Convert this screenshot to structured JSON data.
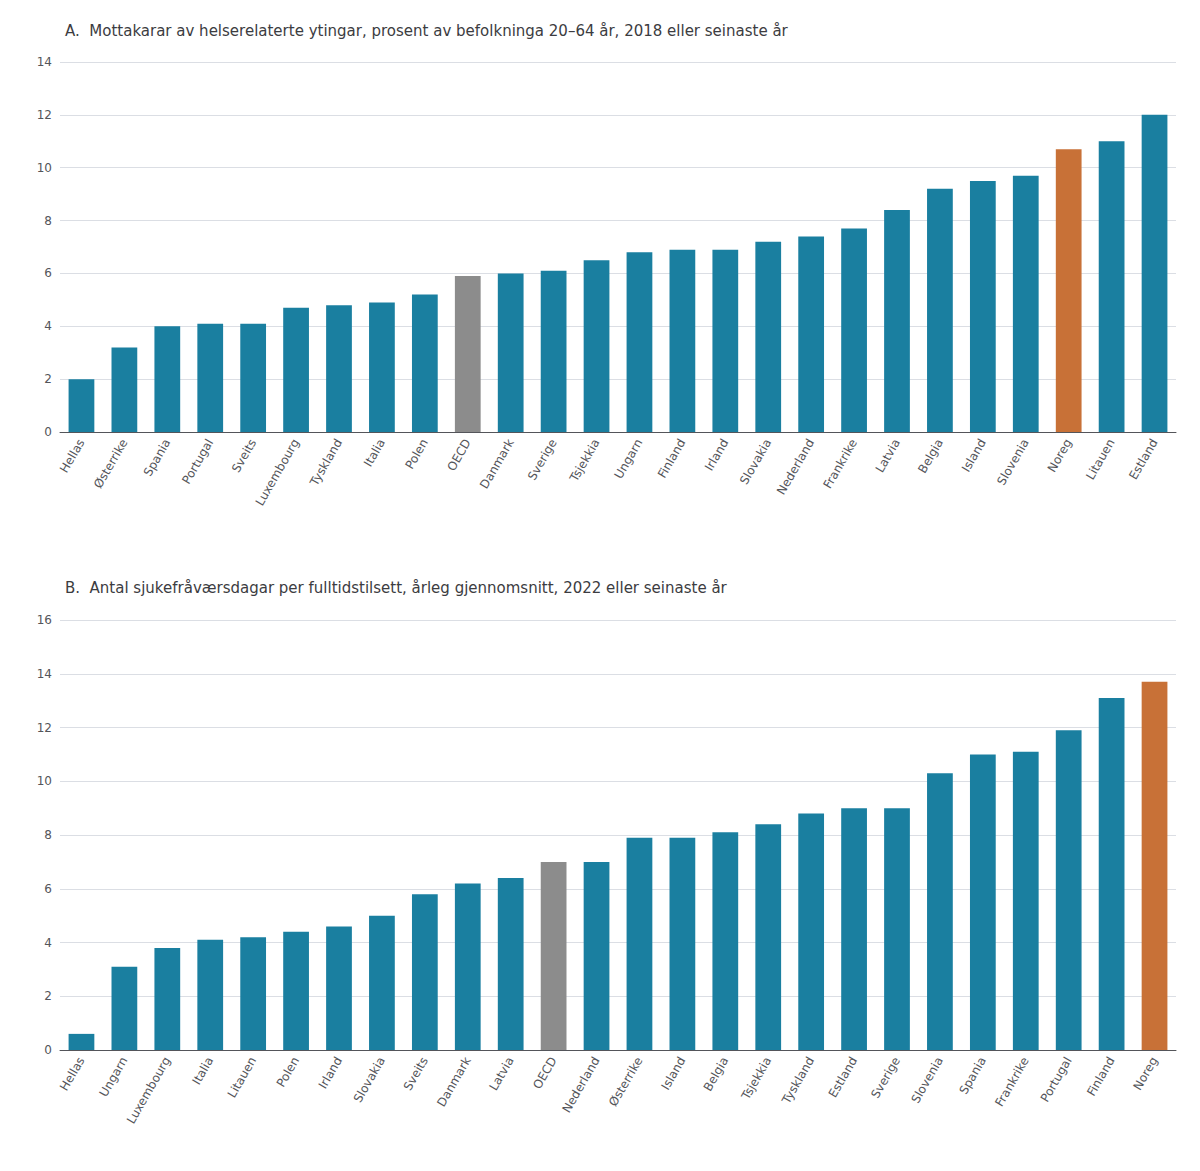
{
  "chart_data": [
    {
      "type": "bar",
      "title": "A.  Mottakarar av helserelaterte ytingar, prosent av befolkninga 20–64 år, 2018 eller seinaste år",
      "categories": [
        "Hellas",
        "Østerrike",
        "Spania",
        "Portugal",
        "Sveits",
        "Luxembourg",
        "Tyskland",
        "Italia",
        "Polen",
        "OECD",
        "Danmark",
        "Sverige",
        "Tsjekkia",
        "Ungarn",
        "Finland",
        "Irland",
        "Slovakia",
        "Nederland",
        "Frankrike",
        "Latvia",
        "Belgia",
        "Island",
        "Slovenia",
        "Noreg",
        "Litauen",
        "Estland"
      ],
      "values": [
        2.0,
        3.2,
        4.0,
        4.1,
        4.1,
        4.7,
        4.8,
        4.9,
        5.2,
        5.9,
        6.0,
        6.1,
        6.5,
        6.8,
        6.9,
        6.9,
        7.2,
        7.4,
        7.7,
        8.4,
        9.2,
        9.5,
        9.7,
        10.7,
        11.0,
        12.0
      ],
      "colors": [
        "#1a7fa0",
        "#1a7fa0",
        "#1a7fa0",
        "#1a7fa0",
        "#1a7fa0",
        "#1a7fa0",
        "#1a7fa0",
        "#1a7fa0",
        "#1a7fa0",
        "#8c8c8c",
        "#1a7fa0",
        "#1a7fa0",
        "#1a7fa0",
        "#1a7fa0",
        "#1a7fa0",
        "#1a7fa0",
        "#1a7fa0",
        "#1a7fa0",
        "#1a7fa0",
        "#1a7fa0",
        "#1a7fa0",
        "#1a7fa0",
        "#1a7fa0",
        "#c87137",
        "#1a7fa0",
        "#1a7fa0"
      ],
      "ylim": [
        0,
        14
      ],
      "yticks": [
        0,
        2,
        4,
        6,
        8,
        10,
        12,
        14
      ],
      "grid": true
    },
    {
      "type": "bar",
      "title": "B.  Antal sjukefråværsdagar per fulltidstilsett, årleg gjennomsnitt, 2022 eller seinaste år",
      "categories": [
        "Hellas",
        "Ungarn",
        "Luxembourg",
        "Italia",
        "Litauen",
        "Polen",
        "Irland",
        "Slovakia",
        "Sveits",
        "Danmark",
        "Latvia",
        "OECD",
        "Nederland",
        "Østerrike",
        "Island",
        "Belgia",
        "Tsjekkia",
        "Tyskland",
        "Estland",
        "Sverige",
        "Slovenia",
        "Spania",
        "Frankrike",
        "Portugal",
        "Finland",
        "Noreg"
      ],
      "values": [
        0.6,
        3.1,
        3.8,
        4.1,
        4.2,
        4.4,
        4.6,
        5.0,
        5.8,
        6.2,
        6.4,
        7.0,
        7.0,
        7.9,
        7.9,
        8.1,
        8.4,
        8.8,
        9.0,
        9.0,
        10.3,
        11.0,
        11.1,
        11.9,
        13.1,
        13.7
      ],
      "colors": [
        "#1a7fa0",
        "#1a7fa0",
        "#1a7fa0",
        "#1a7fa0",
        "#1a7fa0",
        "#1a7fa0",
        "#1a7fa0",
        "#1a7fa0",
        "#1a7fa0",
        "#1a7fa0",
        "#1a7fa0",
        "#8c8c8c",
        "#1a7fa0",
        "#1a7fa0",
        "#1a7fa0",
        "#1a7fa0",
        "#1a7fa0",
        "#1a7fa0",
        "#1a7fa0",
        "#1a7fa0",
        "#1a7fa0",
        "#1a7fa0",
        "#1a7fa0",
        "#1a7fa0",
        "#1a7fa0",
        "#c87137"
      ],
      "ylim": [
        0,
        16
      ],
      "yticks": [
        0,
        2,
        4,
        6,
        8,
        10,
        12,
        14,
        16
      ],
      "grid": true
    }
  ]
}
